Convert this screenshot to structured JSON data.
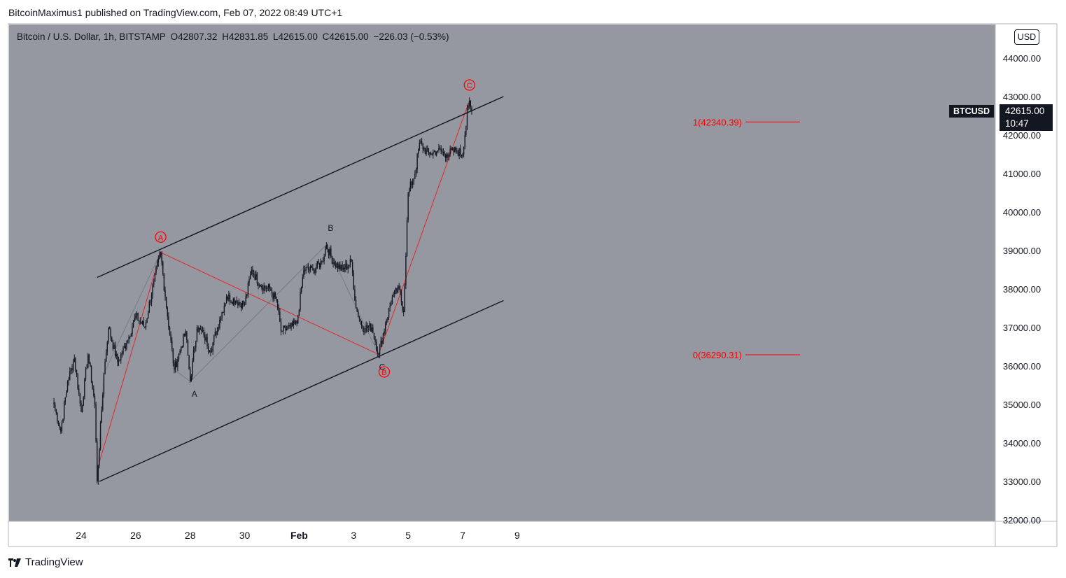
{
  "header": {
    "publisher_text": "BitcoinMaximus1 published on TradingView.com, Feb 07, 2022 08:49 UTC+1"
  },
  "legend": {
    "symbol_text": "Bitcoin / U.S. Dollar, 1h, BITSTAMP",
    "open_key": "O",
    "open_value": "42807.32",
    "high_key": "H",
    "high_value": "42831.85",
    "low_key": "L",
    "low_value": "42615.00",
    "close_key": "C",
    "close_value": "42615.00",
    "change": "−226.03 (−0.53%)"
  },
  "price_axis": {
    "currency_label": "USD",
    "ticks": [
      "44000.00",
      "43000.00",
      "42000.00",
      "41000.00",
      "40000.00",
      "39000.00",
      "38000.00",
      "37000.00",
      "36000.00",
      "35000.00",
      "34000.00",
      "33000.00",
      "32000.00"
    ]
  },
  "time_axis": {
    "ticks": [
      "24",
      "26",
      "28",
      "30",
      "Feb",
      "3",
      "5",
      "7",
      "9"
    ]
  },
  "last_price": {
    "symbol": "BTCUSD",
    "price": "42615.00",
    "countdown": "10:47"
  },
  "annotations": {
    "fib_1": "1(42340.39)",
    "fib_0": "0(36290.31)",
    "wave_A_circle": "A",
    "wave_B_circle": "B",
    "wave_C_circle": "C",
    "wave_a": "A",
    "wave_b": "B",
    "wave_c": "C"
  },
  "colors": {
    "pane_background": "#9598a1",
    "candles": "#131722",
    "annotation_red": "#ff0000",
    "channel_lines": "#131722"
  },
  "footer": {
    "brand": "TradingView"
  },
  "chart_data": {
    "type": "candlestick",
    "title": "Bitcoin / U.S. Dollar, 1h, BITSTAMP",
    "ylim": [
      32000,
      44000
    ],
    "y_unit": "USD",
    "x_ticks": [
      "24",
      "26",
      "28",
      "30",
      "Feb",
      "3",
      "5",
      "7",
      "9"
    ],
    "timeframe": "1h",
    "last_close": 42615.0,
    "price_path_keypoints": [
      {
        "x": "Jan 23 00:00",
        "price": 35000
      },
      {
        "x": "Jan 23 06:00",
        "price": 34300
      },
      {
        "x": "Jan 23 12:00",
        "price": 35600
      },
      {
        "x": "Jan 23 18:00",
        "price": 36200
      },
      {
        "x": "Jan 24 00:00",
        "price": 34800
      },
      {
        "x": "Jan 24 06:00",
        "price": 36300
      },
      {
        "x": "Jan 24 12:00",
        "price": 35000
      },
      {
        "x": "Jan 24 14:00",
        "price": 33000
      },
      {
        "x": "Jan 24 20:00",
        "price": 35800
      },
      {
        "x": "Jan 25 00:00",
        "price": 37000
      },
      {
        "x": "Jan 25 08:00",
        "price": 36100
      },
      {
        "x": "Jan 25 16:00",
        "price": 36600
      },
      {
        "x": "Jan 26 00:00",
        "price": 37300
      },
      {
        "x": "Jan 26 08:00",
        "price": 37000
      },
      {
        "x": "Jan 26 16:00",
        "price": 38200
      },
      {
        "x": "Jan 26 22:00",
        "price": 38950
      },
      {
        "x": "Jan 27 02:00",
        "price": 37800
      },
      {
        "x": "Jan 27 10:00",
        "price": 35900
      },
      {
        "x": "Jan 27 16:00",
        "price": 36500
      },
      {
        "x": "Jan 27 20:00",
        "price": 36900
      },
      {
        "x": "Jan 28 00:00",
        "price": 35600
      },
      {
        "x": "Jan 28 06:00",
        "price": 37000
      },
      {
        "x": "Jan 28 12:00",
        "price": 36800
      },
      {
        "x": "Jan 28 18:00",
        "price": 36400
      },
      {
        "x": "Jan 29 02:00",
        "price": 37200
      },
      {
        "x": "Jan 29 08:00",
        "price": 37800
      },
      {
        "x": "Jan 29 16:00",
        "price": 37700
      },
      {
        "x": "Jan 30 00:00",
        "price": 37600
      },
      {
        "x": "Jan 30 06:00",
        "price": 38500
      },
      {
        "x": "Jan 30 14:00",
        "price": 38100
      },
      {
        "x": "Jan 30 22:00",
        "price": 38000
      },
      {
        "x": "Jan 31 04:00",
        "price": 37700
      },
      {
        "x": "Jan 31 08:00",
        "price": 36900
      },
      {
        "x": "Jan 31 16:00",
        "price": 37000
      },
      {
        "x": "Jan 31 22:00",
        "price": 37100
      },
      {
        "x": "Feb 1 04:00",
        "price": 38500
      },
      {
        "x": "Feb 1 12:00",
        "price": 38500
      },
      {
        "x": "Feb 1 20:00",
        "price": 38700
      },
      {
        "x": "Feb 2 00:00",
        "price": 39150
      },
      {
        "x": "Feb 2 06:00",
        "price": 38700
      },
      {
        "x": "Feb 2 14:00",
        "price": 38500
      },
      {
        "x": "Feb 2 22:00",
        "price": 38700
      },
      {
        "x": "Feb 3 02:00",
        "price": 37500
      },
      {
        "x": "Feb 3 08:00",
        "price": 37000
      },
      {
        "x": "Feb 3 16:00",
        "price": 37000
      },
      {
        "x": "Feb 3 22:00",
        "price": 36300
      },
      {
        "x": "Feb 4 04:00",
        "price": 37100
      },
      {
        "x": "Feb 4 10:00",
        "price": 37800
      },
      {
        "x": "Feb 4 16:00",
        "price": 38000
      },
      {
        "x": "Feb 4 20:00",
        "price": 37400
      },
      {
        "x": "Feb 5 00:00",
        "price": 40500
      },
      {
        "x": "Feb 5 06:00",
        "price": 41000
      },
      {
        "x": "Feb 5 10:00",
        "price": 41800
      },
      {
        "x": "Feb 5 18:00",
        "price": 41500
      },
      {
        "x": "Feb 6 02:00",
        "price": 41600
      },
      {
        "x": "Feb 6 10:00",
        "price": 41500
      },
      {
        "x": "Feb 6 18:00",
        "price": 41600
      },
      {
        "x": "Feb 7 00:00",
        "price": 41500
      },
      {
        "x": "Feb 7 02:00",
        "price": 42000
      },
      {
        "x": "Feb 7 04:00",
        "price": 42700
      },
      {
        "x": "Feb 7 06:00",
        "price": 42900
      },
      {
        "x": "Feb 7 08:00",
        "price": 42615
      }
    ],
    "channel": {
      "upper": [
        {
          "x": "Jan 24 14:00",
          "price": 38300
        },
        {
          "x": "Feb 8 12:00",
          "price": 43000
        }
      ],
      "lower": [
        {
          "x": "Jan 24 16:00",
          "price": 33000
        },
        {
          "x": "Feb 8 12:00",
          "price": 37700
        }
      ]
    },
    "fib_levels": [
      {
        "label": "1(42340.39)",
        "price": 42340.39
      },
      {
        "label": "0(36290.31)",
        "price": 36290.31
      }
    ],
    "wave_labels": [
      {
        "label": "A",
        "style": "circled",
        "x": "Jan 26 22:00",
        "price": 38950
      },
      {
        "label": "B",
        "style": "circled",
        "x": "Feb 3 22:00",
        "price": 36300
      },
      {
        "label": "C",
        "style": "circled",
        "x": "Feb 7 06:00",
        "price": 42900
      },
      {
        "label": "A",
        "style": "plain",
        "x": "Jan 28 00:00",
        "price": 35600
      },
      {
        "label": "B",
        "style": "plain",
        "x": "Feb 2 00:00",
        "price": 39150
      },
      {
        "label": "C",
        "style": "plain",
        "x": "Feb 3 22:00",
        "price": 36300
      }
    ]
  }
}
